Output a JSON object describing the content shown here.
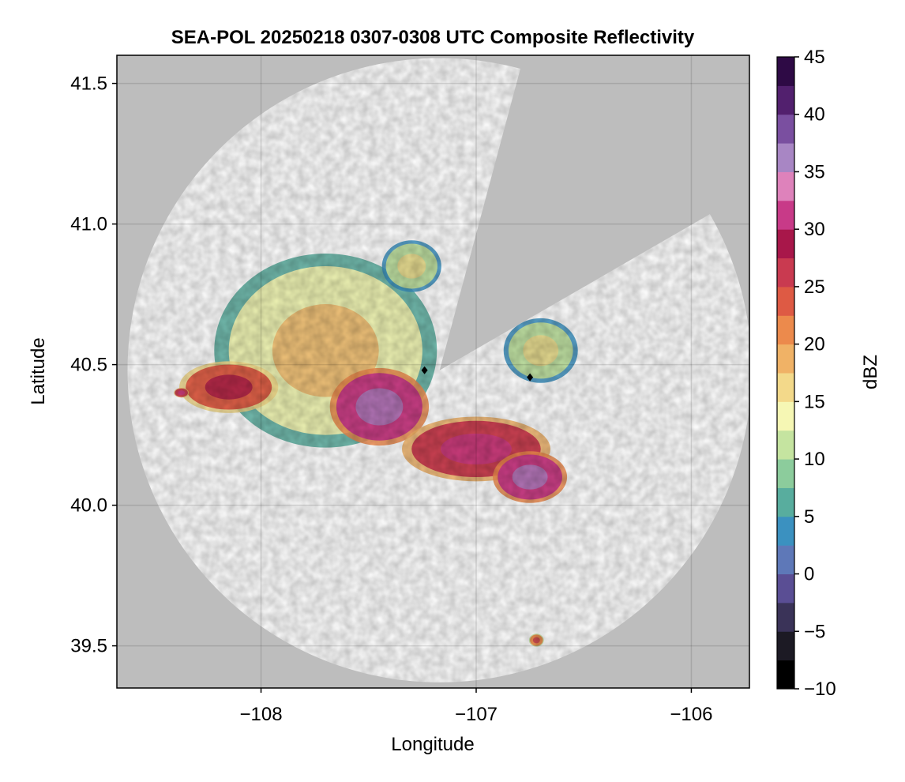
{
  "chart_data": {
    "type": "heatmap",
    "title": "SEA-POL 20250218 0307-0308 UTC Composite Reflectivity",
    "xlabel": "Longitude",
    "ylabel": "Latitude",
    "xlim": [
      -108.67,
      -105.73
    ],
    "ylim": [
      39.35,
      41.6
    ],
    "xticks": [
      -108,
      -107,
      -106
    ],
    "xtick_labels": [
      "−108",
      "−107",
      "−106"
    ],
    "yticks": [
      39.5,
      40.0,
      40.5,
      41.0,
      41.5
    ],
    "ytick_labels": [
      "39.5",
      "40.0",
      "40.5",
      "41.0",
      "41.5"
    ],
    "grid": true,
    "background_color": "#bdbdbd",
    "coverage_color": "#ffffff",
    "radar": {
      "center_lon": -107.17,
      "center_lat": 40.48,
      "range_lat_deg": 1.11,
      "blocked_sector_deg": [
        15,
        60
      ]
    },
    "colorbar": {
      "label": "dBZ",
      "vmin": -10,
      "vmax": 45,
      "ticks": [
        -10,
        -5,
        0,
        5,
        10,
        15,
        20,
        25,
        30,
        35,
        40,
        45
      ],
      "tick_labels": [
        "−10",
        "−5",
        "0",
        "5",
        "10",
        "15",
        "20",
        "25",
        "30",
        "35",
        "40",
        "45"
      ],
      "colors": [
        "#000000",
        "#1c1a24",
        "#3a3358",
        "#5a4e94",
        "#5e78b8",
        "#3b91c0",
        "#58ad9e",
        "#8ccc9c",
        "#c5e4a0",
        "#f6f7b4",
        "#f3d98a",
        "#f0b266",
        "#ec8a4c",
        "#de5a44",
        "#c93a50",
        "#a8174a",
        "#c83a88",
        "#de82bb",
        "#a886c4",
        "#7a4fa0",
        "#52206e",
        "#2e0a45"
      ]
    },
    "echo_regions": [
      {
        "name": "west-central",
        "lon": -107.7,
        "lat": 40.55,
        "rx": 0.45,
        "ry": 0.3,
        "dbz": 14
      },
      {
        "name": "west-band",
        "lon": -108.15,
        "lat": 40.42,
        "rx": 0.2,
        "ry": 0.08,
        "dbz": 24
      },
      {
        "name": "central-core",
        "lon": -107.45,
        "lat": 40.35,
        "rx": 0.2,
        "ry": 0.12,
        "dbz": 30
      },
      {
        "name": "southeast-band",
        "lon": -107.0,
        "lat": 40.2,
        "rx": 0.3,
        "ry": 0.1,
        "dbz": 27
      },
      {
        "name": "southeast-core",
        "lon": -106.75,
        "lat": 40.1,
        "rx": 0.15,
        "ry": 0.08,
        "dbz": 30
      },
      {
        "name": "northeast",
        "lon": -106.7,
        "lat": 40.55,
        "rx": 0.15,
        "ry": 0.1,
        "dbz": 12
      },
      {
        "name": "north",
        "lon": -107.3,
        "lat": 40.85,
        "rx": 0.12,
        "ry": 0.08,
        "dbz": 11
      },
      {
        "name": "south-cell",
        "lon": -106.72,
        "lat": 39.52,
        "rx": 0.03,
        "ry": 0.02,
        "dbz": 20
      },
      {
        "name": "far-west-cell",
        "lon": -108.37,
        "lat": 40.4,
        "rx": 0.03,
        "ry": 0.015,
        "dbz": 26
      }
    ],
    "markers": [
      {
        "name": "radar-site",
        "lon": -107.24,
        "lat": 40.48
      },
      {
        "name": "target-site",
        "lon": -106.75,
        "lat": 40.455
      }
    ]
  }
}
